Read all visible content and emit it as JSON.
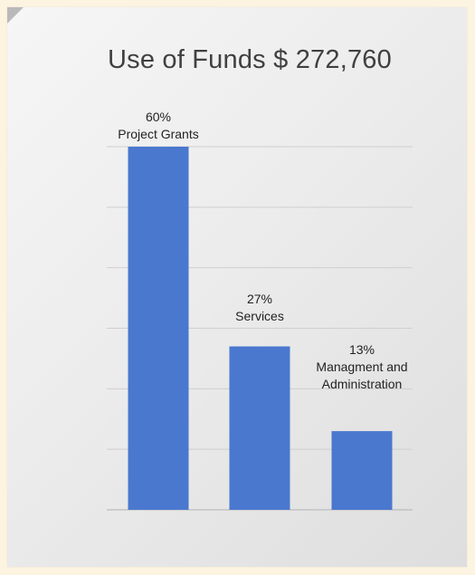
{
  "chart_data": {
    "type": "bar",
    "title": "Use of Funds $ 272,760",
    "categories": [
      "Project Grants",
      "Services",
      "Managment and Administration"
    ],
    "values": [
      60,
      27,
      13
    ],
    "value_labels": [
      "60%",
      "27%",
      "13%"
    ],
    "category_labels": [
      "Project Grants",
      "Services",
      "Managment and\nAdministration"
    ],
    "unit": "%",
    "ylim": [
      0,
      60
    ],
    "grid": true,
    "legend": "none",
    "bar_color": "#4a78cf",
    "gridline_color": "#cfcfcf"
  }
}
